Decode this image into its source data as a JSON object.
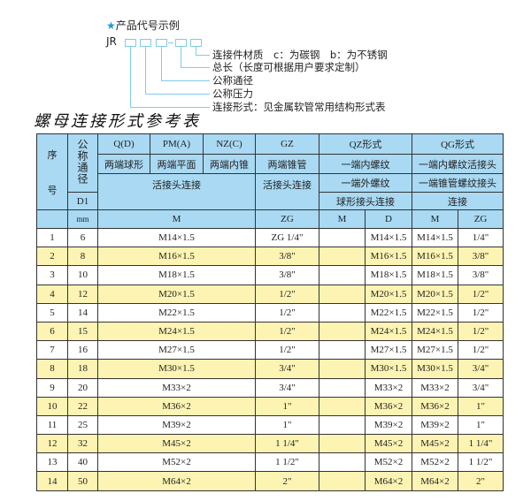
{
  "legend": {
    "title": "产品代号示例",
    "prefix": "JR",
    "items": [
      "连接件材质　c：为碳钢　b：为不锈钢",
      "总长（长度可根据用户要求定制）",
      "公称通径",
      "公称压力",
      "连接形式：见金属软管常用结构形式表"
    ]
  },
  "table_title": "螺母连接形式参考表",
  "header": {
    "seq": "序",
    "seq2": "号",
    "nominal": "公称通径",
    "d1": "D1",
    "mm": "mm",
    "q": "Q(D)",
    "pm": "PM(A)",
    "nz": "NZ(C)",
    "gz": "GZ",
    "qz": "QZ形式",
    "qg": "QG形式",
    "q2": "两端球形",
    "pm2": "两端平面",
    "nz2": "两端内锥",
    "gz2": "两端锥管",
    "qz2": "一端内螺纹",
    "qg2": "一端内螺纹活接头",
    "huo": "活接头连接",
    "gz3": "活接头连接",
    "qz3": "一端外螺纹",
    "qg3": "一端锥管螺纹接头",
    "qz4": "球形接头连接",
    "qg4": "连接",
    "m": "M",
    "zg": "ZG",
    "qzm": "M",
    "qzd": "D",
    "qgm": "M",
    "qgzg": "ZG"
  },
  "rows": [
    {
      "n": "1",
      "d": "6",
      "m": "M14×1.5",
      "zg": "ZG 1/4\"",
      "qzd": "M14×1.5",
      "qgm": "M14×1.5",
      "qgzg": "1/4\""
    },
    {
      "n": "2",
      "d": "8",
      "m": "M16×1.5",
      "zg": "3/8\"",
      "qzd": "M16×1.5",
      "qgm": "M16×1.5",
      "qgzg": "3/8\""
    },
    {
      "n": "3",
      "d": "10",
      "m": "M18×1.5",
      "zg": "3/8\"",
      "qzd": "M18×1.5",
      "qgm": "M18×1.5",
      "qgzg": "3/8\""
    },
    {
      "n": "4",
      "d": "12",
      "m": "M20×1.5",
      "zg": "1/2\"",
      "qzd": "M20×1.5",
      "qgm": "M20×1.5",
      "qgzg": "1/2\""
    },
    {
      "n": "5",
      "d": "14",
      "m": "M22×1.5",
      "zg": "1/2\"",
      "qzd": "M22×1.5",
      "qgm": "M22×1.5",
      "qgzg": "1/2\""
    },
    {
      "n": "6",
      "d": "15",
      "m": "M24×1.5",
      "zg": "1/2\"",
      "qzd": "M24×1.5",
      "qgm": "M24×1.5",
      "qgzg": "1/2\""
    },
    {
      "n": "7",
      "d": "16",
      "m": "M27×1.5",
      "zg": "1/2\"",
      "qzd": "M27×1.5",
      "qgm": "M27×1.5",
      "qgzg": "1/2\""
    },
    {
      "n": "8",
      "d": "18",
      "m": "M30×1.5",
      "zg": "3/4\"",
      "qzd": "M30×1.5",
      "qgm": "M30×1.5",
      "qgzg": "3/4\""
    },
    {
      "n": "9",
      "d": "20",
      "m": "M33×2",
      "zg": "3/4\"",
      "qzd": "M33×2",
      "qgm": "M33×2",
      "qgzg": "3/4\""
    },
    {
      "n": "10",
      "d": "22",
      "m": "M36×2",
      "zg": "1\"",
      "qzd": "M36×2",
      "qgm": "M36×2",
      "qgzg": "1\""
    },
    {
      "n": "11",
      "d": "25",
      "m": "M39×2",
      "zg": "1\"",
      "qzd": "M39×2",
      "qgm": "M39×2",
      "qgzg": "1\""
    },
    {
      "n": "12",
      "d": "32",
      "m": "M45×2",
      "zg": "1 1/4\"",
      "qzd": "M45×2",
      "qgm": "M45×2",
      "qgzg": "1 1/4\""
    },
    {
      "n": "13",
      "d": "40",
      "m": "M52×2",
      "zg": "1 1/2\"",
      "qzd": "M52×2",
      "qgm": "M52×2",
      "qgzg": "1 1/2\""
    },
    {
      "n": "14",
      "d": "50",
      "m": "M64×2",
      "zg": "2\"",
      "qzd": "M64×2",
      "qgm": "M64×2",
      "qgzg": "2\""
    }
  ]
}
